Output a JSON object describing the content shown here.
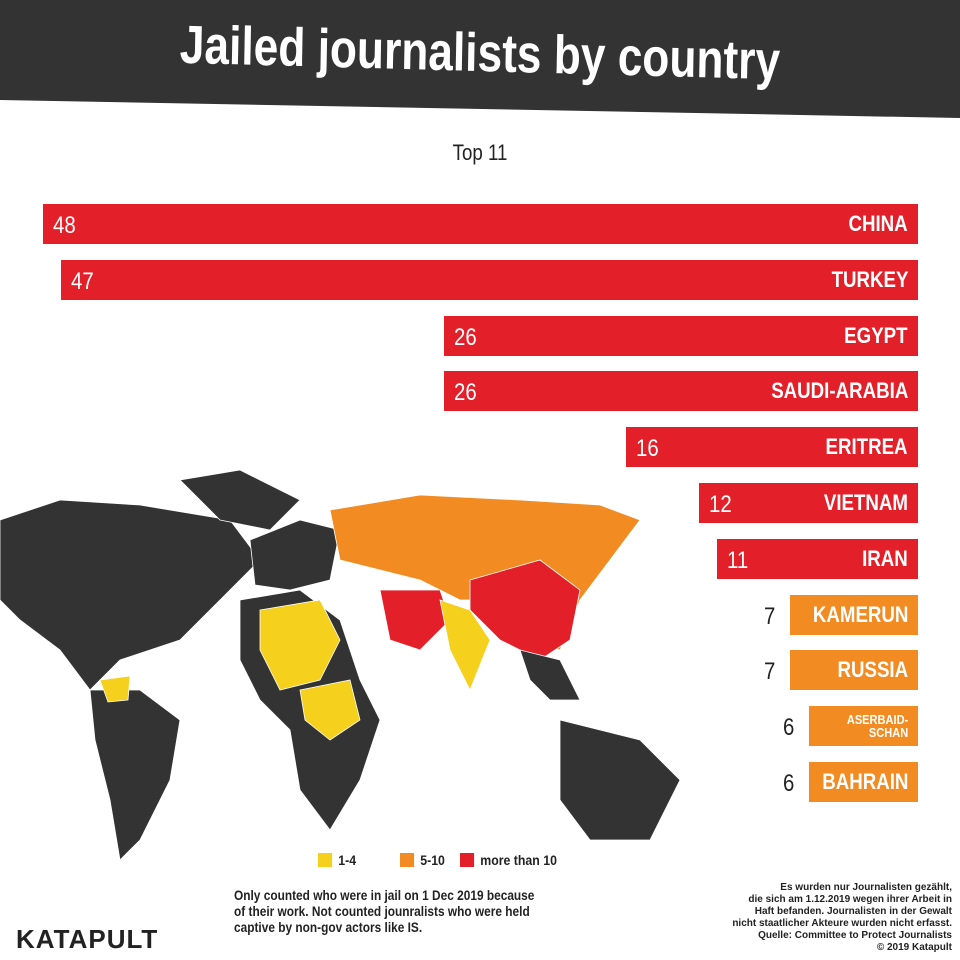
{
  "chart_data": {
    "type": "bar",
    "title": "Jailed journalists by country",
    "subtitle": "Top 11",
    "categories": [
      "CHINA",
      "TURKEY",
      "EGYPT",
      "SAUDI-ARABIA",
      "ERITREA",
      "VIETNAM",
      "IRAN",
      "KAMERUN",
      "RUSSIA",
      "ASERBAID-\nSCHAN",
      "BAHRAIN"
    ],
    "values": [
      48,
      47,
      26,
      26,
      16,
      12,
      11,
      7,
      7,
      6,
      6
    ],
    "colors": [
      "#e3202a",
      "#e3202a",
      "#e3202a",
      "#e3202a",
      "#e3202a",
      "#e3202a",
      "#e3202a",
      "#f28c22",
      "#f28c22",
      "#f28c22",
      "#f28c22"
    ],
    "legend": [
      {
        "label": "1-4",
        "color": "#f5d01c"
      },
      {
        "label": "5-10",
        "color": "#f28c22"
      },
      {
        "label": "more than 10",
        "color": "#e3202a"
      }
    ],
    "note": "Only counted who were in jail on 1 Dec 2019 because\nof their work. Not counted jounralists who were held\ncaptive by non-gov actors like IS.",
    "source": "Es wurden nur Journalisten gezählt,\ndie sich am 1.12.2019 wegen ihrer Arbeit in\nHaft befanden. Journalisten in der Gewalt\nnicht staatlicher Akteure wurden nicht erfasst.\nQuelle: Committee to Protect Journalists\n© 2019 Katapult",
    "logo": "KATAPULT"
  }
}
